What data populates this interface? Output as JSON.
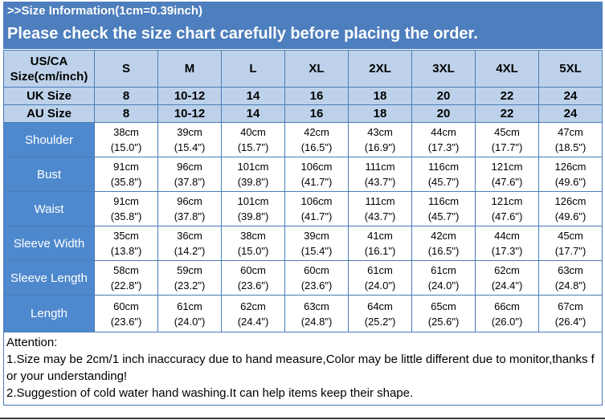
{
  "header": {
    "title_line": ">>Size Information(1cm=0.39inch)",
    "warning_line": "Please check the size chart carefully before placing the order."
  },
  "colors": {
    "banner_bg": "#4d7ebd",
    "header_cell_bg": "#bdd2ea",
    "label_cell_bg": "#4e89ce",
    "table_border": "#4a7cb8",
    "text_on_blue": "#ffffff"
  },
  "size_table": {
    "corner_header": "US/CA Size(cm/inch)",
    "columns": [
      "S",
      "M",
      "L",
      "XL",
      "2XL",
      "3XL",
      "4XL",
      "5XL"
    ],
    "uk_row": {
      "label": "UK Size",
      "values": [
        "8",
        "10-12",
        "14",
        "16",
        "18",
        "20",
        "22",
        "24"
      ]
    },
    "au_row": {
      "label": "AU Size",
      "values": [
        "8",
        "10-12",
        "14",
        "16",
        "18",
        "20",
        "22",
        "24"
      ]
    },
    "measurement_rows": [
      {
        "label": "Shoulder",
        "cm": [
          "38cm",
          "39cm",
          "40cm",
          "42cm",
          "43cm",
          "44cm",
          "45cm",
          "47cm"
        ],
        "inch": [
          "(15.0\")",
          "(15.4\")",
          "(15.7\")",
          "(16.5\")",
          "(16.9\")",
          "(17.3\")",
          "(17.7\")",
          "(18.5\")"
        ]
      },
      {
        "label": "Bust",
        "cm": [
          "91cm",
          "96cm",
          "101cm",
          "106cm",
          "111cm",
          "116cm",
          "121cm",
          "126cm"
        ],
        "inch": [
          "(35.8\")",
          "(37.8\")",
          "(39.8\")",
          "(41.7\")",
          "(43.7\")",
          "(45.7\")",
          "(47.6\")",
          "(49.6\")"
        ]
      },
      {
        "label": "Waist",
        "cm": [
          "91cm",
          "96cm",
          "101cm",
          "106cm",
          "111cm",
          "116cm",
          "121cm",
          "126cm"
        ],
        "inch": [
          "(35.8\")",
          "(37.8\")",
          "(39.8\")",
          "(41.7\")",
          "(43.7\")",
          "(45.7\")",
          "(47.6\")",
          "(49.6\")"
        ]
      },
      {
        "label": "Sleeve Width",
        "cm": [
          "35cm",
          "36cm",
          "38cm",
          "39cm",
          "41cm",
          "42cm",
          "44cm",
          "45cm"
        ],
        "inch": [
          "(13.8\")",
          "(14.2\")",
          "(15.0\")",
          "(15.4\")",
          "(16.1\")",
          "(16.5\")",
          "(17.3\")",
          "(17.7\")"
        ]
      },
      {
        "label": "Sleeve Length",
        "cm": [
          "58cm",
          "59cm",
          "60cm",
          "60cm",
          "61cm",
          "61cm",
          "62cm",
          "63cm"
        ],
        "inch": [
          "(22.8\")",
          "(23.2\")",
          "(23.6\")",
          "(23.6\")",
          "(24.0\")",
          "(24.0\")",
          "(24.4\")",
          "(24.8\")"
        ]
      },
      {
        "label": "Length",
        "cm": [
          "60cm",
          "61cm",
          "62cm",
          "63cm",
          "64cm",
          "65cm",
          "66cm",
          "67cm"
        ],
        "inch": [
          "(23.6\")",
          "(24.0\")",
          "(24.4\")",
          "(24.8\")",
          "(25.2\")",
          "(25.6\")",
          "(26.0\")",
          "(26.4\")"
        ]
      }
    ]
  },
  "attention": {
    "title": "Attention:",
    "notes": [
      "1.Size may be 2cm/1 inch inaccuracy due to hand measure,Color may be little different due to monitor,thanks for your understanding!",
      "2.Suggestion of cold water hand washing.It can help items keep their shape."
    ]
  }
}
